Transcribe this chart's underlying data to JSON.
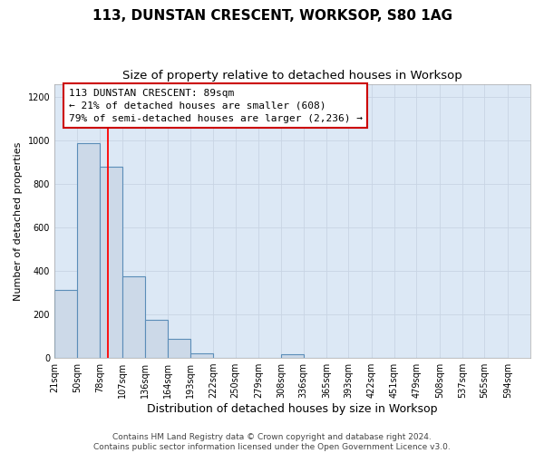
{
  "title": "113, DUNSTAN CRESCENT, WORKSOP, S80 1AG",
  "subtitle": "Size of property relative to detached houses in Worksop",
  "xlabel": "Distribution of detached houses by size in Worksop",
  "ylabel": "Number of detached properties",
  "bar_left_edges": [
    21,
    50,
    78,
    107,
    136,
    164,
    193,
    222,
    250,
    279,
    308,
    336,
    365,
    393,
    422,
    451,
    479,
    508,
    537,
    565
  ],
  "bar_widths": [
    29,
    28,
    29,
    29,
    28,
    29,
    29,
    28,
    29,
    29,
    28,
    29,
    28,
    29,
    29,
    28,
    29,
    29,
    28,
    29
  ],
  "bar_heights": [
    310,
    990,
    880,
    375,
    175,
    85,
    20,
    0,
    0,
    0,
    15,
    0,
    0,
    0,
    0,
    0,
    0,
    0,
    0,
    0
  ],
  "bar_color": "#ccd9e8",
  "bar_edge_color": "#5b8db8",
  "bar_edge_width": 0.8,
  "marker_x": 89,
  "marker_color": "red",
  "marker_linewidth": 1.3,
  "annotation_text": "113 DUNSTAN CRESCENT: 89sqm\n← 21% of detached houses are smaller (608)\n79% of semi-detached houses are larger (2,236) →",
  "annotation_box_facecolor": "white",
  "annotation_box_edgecolor": "#cc0000",
  "xlim_left": 21,
  "xlim_right": 623,
  "ylim_bottom": 0,
  "ylim_top": 1260,
  "yticks": [
    0,
    200,
    400,
    600,
    800,
    1000,
    1200
  ],
  "xtick_labels": [
    "21sqm",
    "50sqm",
    "78sqm",
    "107sqm",
    "136sqm",
    "164sqm",
    "193sqm",
    "222sqm",
    "250sqm",
    "279sqm",
    "308sqm",
    "336sqm",
    "365sqm",
    "393sqm",
    "422sqm",
    "451sqm",
    "479sqm",
    "508sqm",
    "537sqm",
    "565sqm",
    "594sqm"
  ],
  "xtick_positions": [
    21,
    50,
    78,
    107,
    136,
    164,
    193,
    222,
    250,
    279,
    308,
    336,
    365,
    393,
    422,
    451,
    479,
    508,
    537,
    565,
    594
  ],
  "grid_color": "#c8d4e4",
  "plot_bg_color": "#dce8f5",
  "fig_bg_color": "#ffffff",
  "footer": "Contains HM Land Registry data © Crown copyright and database right 2024.\nContains public sector information licensed under the Open Government Licence v3.0.",
  "title_fontsize": 11,
  "subtitle_fontsize": 9.5,
  "xlabel_fontsize": 9,
  "ylabel_fontsize": 8,
  "tick_fontsize": 7,
  "annotation_fontsize": 8,
  "footer_fontsize": 6.5
}
